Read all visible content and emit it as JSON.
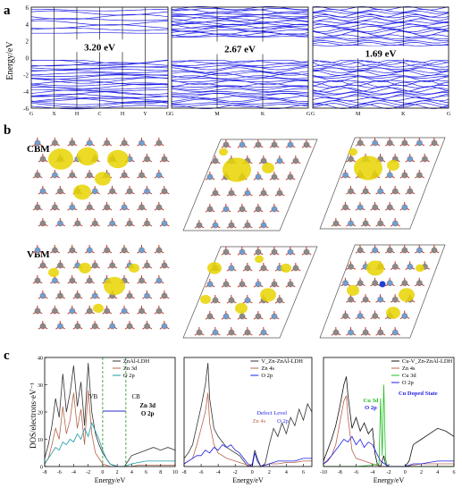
{
  "panel_letters": {
    "a": "a",
    "b": "b",
    "c": "c"
  },
  "band_panels": {
    "ylabel": "Energy/eV",
    "y_ticks": [
      "6",
      "4",
      "2",
      "0",
      "-2",
      "-4",
      "-6"
    ],
    "ylim": [
      -6,
      6
    ],
    "line_color": "#1f1fe6",
    "gap_fill_color": "#ffffff",
    "panels": [
      {
        "gap_label": "3.20 eV",
        "k_labels": [
          "G",
          "X",
          "H",
          "C",
          "H",
          "Y",
          "G"
        ],
        "vbm": -0.3,
        "cbm": 2.9
      },
      {
        "gap_label": "2.67 eV",
        "k_labels": [
          "G",
          "M",
          "K",
          "G"
        ],
        "vbm": -0.3,
        "cbm": 2.4
      },
      {
        "gap_label": "1.69 eV",
        "k_labels": [
          "G",
          "M",
          "K",
          "G"
        ],
        "vbm": -0.3,
        "cbm": 1.4
      }
    ]
  },
  "structure_panels": {
    "cbm_label": "CBM",
    "vbm_label": "VBM",
    "colors": {
      "isosurface": "#e8d400",
      "zn": "#6f9fd0",
      "al": "#8a8a8a",
      "o": "#c0392b",
      "h": "#f3d9d9",
      "cu": "#1f3fd0",
      "cell": "#555555"
    }
  },
  "chart_data": [
    {
      "type": "line",
      "ylabel": "DOS/electrons·eV⁻¹",
      "xlabel": "Energy/eV",
      "xlim": [
        -8,
        10
      ],
      "ylim": [
        0,
        40
      ],
      "x_ticks": [
        "-8",
        "-6",
        "-4",
        "-2",
        "0",
        "2",
        "4",
        "6",
        "8",
        "10"
      ],
      "y_ticks": [
        "0",
        "10",
        "20",
        "30",
        "40"
      ],
      "legend": [
        "ZnAl-LDH",
        "Zn 3d",
        "O 2p"
      ],
      "series": [
        {
          "name": "ZnAl-LDH",
          "color": "#333333",
          "x": [
            -8,
            -7.5,
            -7,
            -6.5,
            -6,
            -5.5,
            -5,
            -4.5,
            -4,
            -3.5,
            -3,
            -2.5,
            -2,
            -1.5,
            -1,
            -0.5,
            0,
            0.5,
            1,
            2,
            3,
            3.5,
            4,
            5,
            6,
            7,
            8,
            9,
            10
          ],
          "y": [
            3,
            8,
            15,
            25,
            18,
            34,
            20,
            27,
            37,
            22,
            31,
            15,
            38,
            20,
            12,
            8,
            5,
            3,
            1,
            0,
            0,
            2,
            4,
            5,
            6,
            7,
            6,
            7,
            6
          ]
        },
        {
          "name": "Zn 3d",
          "color": "#b5654a",
          "x": [
            -8,
            -7.5,
            -7,
            -6.5,
            -6,
            -5.5,
            -5,
            -4.5,
            -4,
            -3.5,
            -3,
            -2.5,
            -2,
            -1.5,
            -1,
            -0.5,
            0,
            0.5,
            1,
            2,
            3,
            4,
            5,
            6,
            7,
            8,
            9,
            10
          ],
          "y": [
            1,
            3,
            8,
            14,
            10,
            22,
            12,
            17,
            27,
            14,
            21,
            8,
            28,
            12,
            5,
            3,
            1,
            0.5,
            0,
            0,
            0,
            0,
            0.5,
            0.5,
            0.5,
            0.5,
            0.5,
            0.5
          ]
        },
        {
          "name": "O 2p",
          "color": "#1f9aa5",
          "x": [
            -8,
            -7.5,
            -7,
            -6.5,
            -6,
            -5.5,
            -5,
            -4.5,
            -4,
            -3.5,
            -3,
            -2.5,
            -2,
            -1.5,
            -1,
            -0.5,
            0,
            0.5,
            1,
            2,
            3,
            4,
            5,
            6,
            7,
            8,
            9,
            10
          ],
          "y": [
            1,
            3,
            5,
            7,
            6,
            9,
            8,
            10,
            9,
            12,
            10,
            14,
            11,
            16,
            13,
            10,
            6,
            3,
            1,
            0,
            0,
            1,
            1.5,
            2,
            2,
            2,
            2,
            2
          ]
        }
      ],
      "vlines": [
        {
          "x": 0,
          "color": "#3aa03a"
        },
        {
          "x": 3.2,
          "color": "#3aa03a"
        }
      ],
      "annotations": {
        "vb": "VB",
        "cb": "CB",
        "state": "Zn 3d\nO 2p"
      }
    },
    {
      "type": "line",
      "xlabel": "Energy/eV",
      "xlim": [
        -8,
        7
      ],
      "ylim": [
        0,
        40
      ],
      "x_ticks": [
        "-8",
        "-6",
        "-4",
        "-2",
        "0",
        "2",
        "4",
        "6"
      ],
      "legend": [
        "V_Zn-ZnAl-LDH",
        "Zn 4s",
        "O  2p"
      ],
      "series": [
        {
          "name": "V_Zn-ZnAl-LDH",
          "color": "#333333",
          "x": [
            -8,
            -7.5,
            -7,
            -6.5,
            -6,
            -5.5,
            -5.2,
            -5,
            -4.5,
            -4,
            -3.5,
            -3,
            -2.5,
            -2,
            -1.5,
            -1,
            -0.5,
            0,
            0.3,
            0.6,
            1,
            1.5,
            2,
            2.5,
            3,
            3.5,
            4,
            4.5,
            5,
            5.5,
            6,
            6.5,
            7
          ],
          "y": [
            3,
            5,
            8,
            15,
            22,
            30,
            38,
            25,
            14,
            11,
            9,
            7,
            6,
            5,
            4,
            2,
            0,
            1,
            6,
            3,
            0,
            1,
            8,
            14,
            11,
            16,
            12,
            18,
            15,
            21,
            17,
            23,
            20
          ]
        },
        {
          "name": "Zn 4s",
          "color": "#b5654a",
          "x": [
            -8,
            -7,
            -6.5,
            -6,
            -5.5,
            -5.2,
            -5,
            -4.5,
            -4,
            -3,
            -2,
            -1,
            0,
            1,
            2,
            3,
            4,
            5,
            6,
            7
          ],
          "y": [
            1,
            3,
            8,
            14,
            20,
            27,
            16,
            8,
            5,
            3,
            2,
            1,
            0,
            0,
            1,
            1,
            1.5,
            1.5,
            2,
            2
          ]
        },
        {
          "name": "O  2p",
          "color": "#1f1fe6",
          "x": [
            -8,
            -7.5,
            -7,
            -6.5,
            -6,
            -5.5,
            -5,
            -4.5,
            -4,
            -3.5,
            -3,
            -2.5,
            -2,
            -1.5,
            -1,
            -0.5,
            0,
            0.3,
            0.6,
            1,
            2,
            3,
            4,
            5,
            6,
            7
          ],
          "y": [
            1,
            2,
            3,
            4,
            4,
            6,
            5,
            7,
            6,
            8,
            7,
            8,
            6,
            5,
            3,
            1,
            0,
            5,
            2,
            0,
            1,
            2,
            2,
            2,
            3,
            3
          ]
        }
      ],
      "annotations": {
        "defect": "Defect Level",
        "zn4s": "Zn 4s",
        "o2p": "O  2p"
      }
    },
    {
      "type": "line",
      "xlabel": "Energy/eV",
      "xlim": [
        -10,
        6
      ],
      "ylim": [
        0,
        40
      ],
      "x_ticks": [
        "-10",
        "-8",
        "-6",
        "-4",
        "-2",
        "0",
        "2",
        "4",
        "6"
      ],
      "legend": [
        "Cu-V_Zn-ZnAl-LDH",
        "Zn 4s",
        "Cu 3d",
        "O  2p"
      ],
      "series": [
        {
          "name": "Cu-V_Zn-ZnAl-LDH",
          "color": "#111111",
          "x": [
            -10,
            -9.5,
            -9,
            -8.5,
            -8,
            -7.5,
            -7.2,
            -7,
            -6.5,
            -6,
            -5.5,
            -5,
            -4.5,
            -4,
            -3.7,
            -3.4,
            -3,
            -2.8,
            -2.6,
            -2.4,
            -2.2,
            -2,
            -1.5,
            -1,
            -0.5,
            0,
            0.5,
            1,
            2,
            3,
            4,
            5,
            6
          ],
          "y": [
            2,
            6,
            10,
            15,
            22,
            30,
            33,
            26,
            14,
            18,
            13,
            16,
            12,
            14,
            5,
            1,
            0,
            2,
            4,
            1,
            0,
            0,
            0,
            0,
            0,
            0,
            2,
            8,
            10,
            12,
            14,
            13,
            11
          ]
        },
        {
          "name": "Zn 4s",
          "color": "#b5654a",
          "x": [
            -10,
            -9,
            -8.5,
            -8,
            -7.5,
            -7.2,
            -7,
            -6.5,
            -6,
            -5,
            -4,
            -3,
            -2,
            0,
            2,
            4,
            6
          ],
          "y": [
            1,
            4,
            8,
            16,
            24,
            26,
            18,
            6,
            3,
            2,
            1,
            0,
            0,
            0,
            1,
            1,
            1
          ]
        },
        {
          "name": "Cu 3d",
          "color": "#1fbf1f",
          "x": [
            -10,
            -8,
            -6,
            -4,
            -3.2,
            -3,
            -2.8,
            -2.6,
            -2.4,
            -2.2,
            -2,
            0,
            2,
            4,
            6
          ],
          "y": [
            0,
            0,
            0,
            0.5,
            1,
            25,
            4,
            30,
            3,
            0.5,
            0,
            0,
            0,
            0,
            0
          ]
        },
        {
          "name": "O  2p",
          "color": "#1f1fe6",
          "x": [
            -10,
            -9.5,
            -9,
            -8.5,
            -8,
            -7.5,
            -7,
            -6.5,
            -6,
            -5.5,
            -5,
            -4.5,
            -4,
            -3.5,
            -3,
            -2.5,
            -2,
            0,
            1,
            2,
            3,
            4,
            5,
            6
          ],
          "y": [
            1,
            2,
            4,
            6,
            8,
            10,
            9,
            11,
            8,
            10,
            7,
            9,
            8,
            5,
            2,
            1,
            0,
            0,
            1,
            1,
            1.5,
            2,
            2,
            2
          ]
        }
      ],
      "annotations": {
        "cu3d": "Cu 3d",
        "o2p": "O 2p",
        "doped": "Cu Doped State"
      }
    }
  ]
}
